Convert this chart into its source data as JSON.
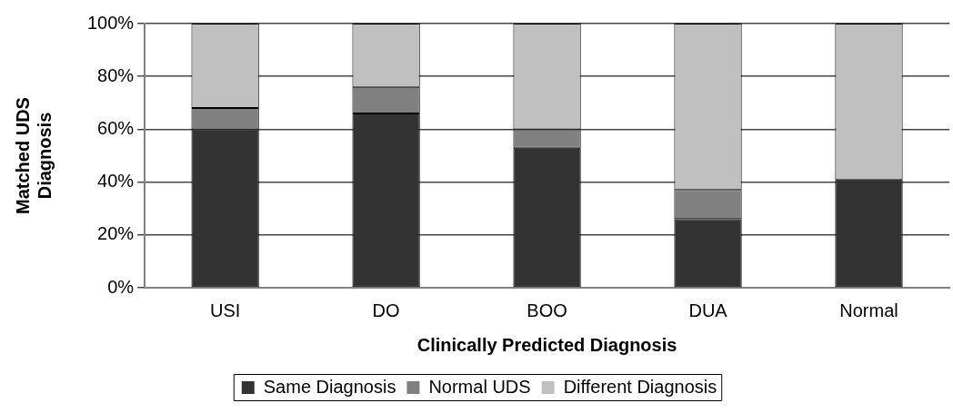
{
  "chart_data": {
    "type": "bar",
    "stacked": true,
    "xlabel": "Clinically Predicted Diagnosis",
    "ylabel": "Matched UDS Diagnosis",
    "categories": [
      "USI",
      "DO",
      "BOO",
      "DUA",
      "Normal"
    ],
    "series": [
      {
        "name": "Same Diagnosis",
        "color": "#333333",
        "values": [
          60,
          66,
          53,
          26,
          41
        ]
      },
      {
        "name": "Normal UDS",
        "color": "#808080",
        "values": [
          8,
          10,
          7,
          11,
          0
        ]
      },
      {
        "name": "Different Diagnosis",
        "color": "#c0c0c0",
        "values": [
          32,
          24,
          40,
          63,
          59
        ]
      }
    ],
    "ylim": [
      0,
      100
    ],
    "yticks": [
      {
        "value": 0,
        "label": "0%"
      },
      {
        "value": 20,
        "label": "20%"
      },
      {
        "value": 40,
        "label": "40%"
      },
      {
        "value": 60,
        "label": "60%"
      },
      {
        "value": 80,
        "label": "80%"
      },
      {
        "value": 100,
        "label": "100%"
      }
    ],
    "grid": "y",
    "legend": "bottom"
  }
}
